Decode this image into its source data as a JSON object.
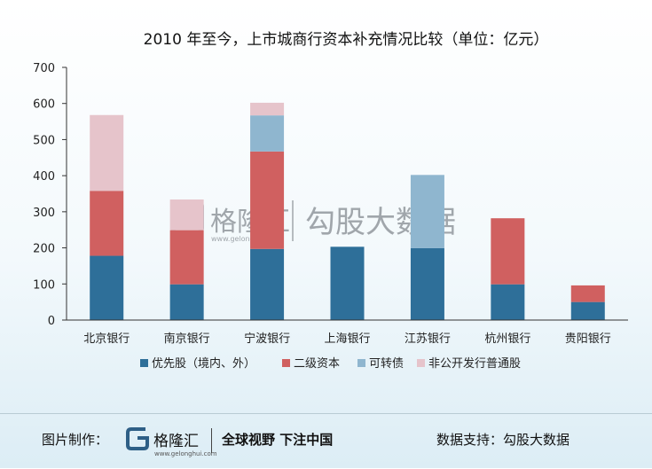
{
  "chart_data": {
    "type": "bar",
    "stacked": true,
    "title": "2010 年至今，上市城商行资本补充情况比较（单位：亿元）",
    "categories": [
      "北京银行",
      "南京银行",
      "宁波银行",
      "上海银行",
      "江苏银行",
      "杭州银行",
      "贵阳银行"
    ],
    "series": [
      {
        "name": "优先股（境内、外）",
        "color": "#2e6f99",
        "values": [
          178,
          99,
          197,
          203,
          199,
          99,
          50
        ]
      },
      {
        "name": "二级资本",
        "color": "#d06060",
        "values": [
          180,
          150,
          270,
          0,
          0,
          183,
          46
        ]
      },
      {
        "name": "可转债",
        "color": "#8fb6cf",
        "values": [
          0,
          0,
          100,
          0,
          203,
          0,
          0
        ]
      },
      {
        "name": "非公开发行普通股",
        "color": "#e6c4cb",
        "values": [
          210,
          85,
          35,
          0,
          0,
          0,
          0
        ]
      }
    ],
    "ylim": [
      0,
      700
    ],
    "yticks": [
      0,
      100,
      200,
      300,
      400,
      500,
      600,
      700
    ],
    "grid": false,
    "legend_position": "bottom"
  },
  "watermark": {
    "brand": "格隆汇",
    "brand_url": "www.gelonghui.com",
    "text": "勾股大数据"
  },
  "footer": {
    "made_by_label": "图片制作：",
    "brand": "格隆汇",
    "brand_url": "www.gelonghui.com",
    "slogan": "全球视野 下注中国",
    "support": "数据支持：勾股大数据"
  }
}
